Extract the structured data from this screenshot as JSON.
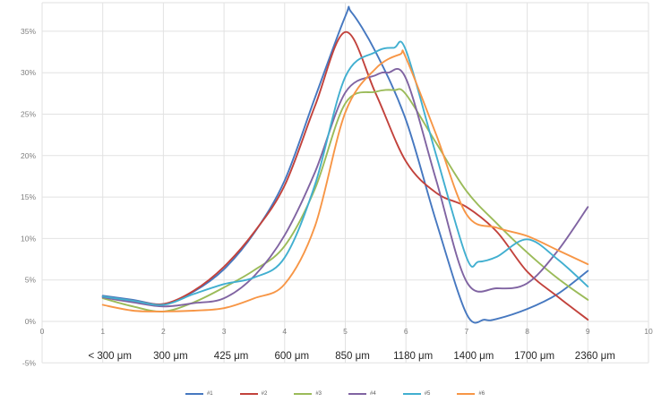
{
  "chart_data": {
    "type": "line",
    "title": "",
    "xlabel": "",
    "ylabel": "",
    "grid": true,
    "legend_position": "bottom",
    "x_axis": {
      "min": 0,
      "max": 10,
      "ticks": [
        "0",
        "1",
        "2",
        "3",
        "4",
        "5",
        "6",
        "7",
        "8",
        "9",
        "10"
      ]
    },
    "y_axis": {
      "min": -5,
      "max": 38.5,
      "step": 5,
      "ticks": [
        "-5%",
        "0%",
        "5%",
        "10%",
        "15%",
        "20%",
        "25%",
        "30%",
        "35%"
      ],
      "tick_values": [
        -5,
        0,
        5,
        10,
        15,
        20,
        25,
        30,
        35
      ]
    },
    "category_labels": [
      {
        "x": 1,
        "label": "< 300 μm"
      },
      {
        "x": 2,
        "label": "300 μm"
      },
      {
        "x": 3,
        "label": "425 μm"
      },
      {
        "x": 4,
        "label": "600 μm"
      },
      {
        "x": 5,
        "label": "850 μm"
      },
      {
        "x": 6,
        "label": "1180 μm"
      },
      {
        "x": 7,
        "label": "1400 μm"
      },
      {
        "x": 8,
        "label": "1700 μm"
      },
      {
        "x": 9,
        "label": "2360 μm"
      }
    ],
    "series": [
      {
        "name": "#1",
        "color": "#4678C0",
        "points": [
          [
            1,
            3.1
          ],
          [
            1.5,
            2.6
          ],
          [
            2,
            2.1
          ],
          [
            2.5,
            3.6
          ],
          [
            3,
            6.3
          ],
          [
            3.5,
            10.7
          ],
          [
            4,
            17.0
          ],
          [
            4.5,
            27.0
          ],
          [
            5,
            36.8
          ],
          [
            5.1,
            37.3
          ],
          [
            5.5,
            32.5
          ],
          [
            6,
            24.3
          ],
          [
            6.5,
            12.0
          ],
          [
            7,
            0.9
          ],
          [
            7.3,
            0.2
          ],
          [
            7.5,
            0.3
          ],
          [
            8,
            1.5
          ],
          [
            8.5,
            3.3
          ],
          [
            9,
            6.1
          ]
        ]
      },
      {
        "name": "#2",
        "color": "#C2423C",
        "points": [
          [
            1,
            3.0
          ],
          [
            1.5,
            2.5
          ],
          [
            2,
            2.1
          ],
          [
            2.5,
            3.7
          ],
          [
            3,
            6.6
          ],
          [
            3.5,
            10.8
          ],
          [
            4,
            16.4
          ],
          [
            4.5,
            26.0
          ],
          [
            5,
            34.9
          ],
          [
            5.5,
            27.5
          ],
          [
            6,
            19.3
          ],
          [
            6.5,
            15.5
          ],
          [
            7,
            13.8
          ],
          [
            7.5,
            10.8
          ],
          [
            8,
            6.0
          ],
          [
            8.5,
            3.0
          ],
          [
            9,
            0.2
          ]
        ]
      },
      {
        "name": "#3",
        "color": "#9BBB59",
        "points": [
          [
            1,
            2.8
          ],
          [
            1.5,
            1.8
          ],
          [
            2,
            1.2
          ],
          [
            2.5,
            2.3
          ],
          [
            3,
            4.1
          ],
          [
            3.5,
            6.2
          ],
          [
            4,
            9.1
          ],
          [
            4.5,
            16.0
          ],
          [
            5,
            26.3
          ],
          [
            5.5,
            27.7
          ],
          [
            5.8,
            27.9
          ],
          [
            6,
            27.4
          ],
          [
            6.5,
            21.5
          ],
          [
            7,
            15.7
          ],
          [
            7.5,
            11.8
          ],
          [
            8,
            8.3
          ],
          [
            8.5,
            5.2
          ],
          [
            9,
            2.6
          ]
        ]
      },
      {
        "name": "#4",
        "color": "#8064A2",
        "points": [
          [
            1,
            2.9
          ],
          [
            1.5,
            2.3
          ],
          [
            2,
            1.8
          ],
          [
            2.5,
            2.2
          ],
          [
            3,
            2.8
          ],
          [
            3.5,
            5.5
          ],
          [
            4,
            10.4
          ],
          [
            4.5,
            18.0
          ],
          [
            5,
            27.6
          ],
          [
            5.5,
            29.7
          ],
          [
            5.7,
            30.0
          ],
          [
            6,
            29.3
          ],
          [
            6.5,
            17.0
          ],
          [
            7,
            4.8
          ],
          [
            7.5,
            4.0
          ],
          [
            8,
            4.6
          ],
          [
            8.5,
            8.5
          ],
          [
            9,
            13.8
          ]
        ]
      },
      {
        "name": "#5",
        "color": "#41AFD0",
        "points": [
          [
            1,
            3.0
          ],
          [
            1.5,
            2.5
          ],
          [
            2,
            2.0
          ],
          [
            2.5,
            3.3
          ],
          [
            3,
            4.5
          ],
          [
            3.5,
            5.3
          ],
          [
            4,
            7.7
          ],
          [
            4.5,
            16.5
          ],
          [
            5,
            29.5
          ],
          [
            5.5,
            32.5
          ],
          [
            5.8,
            33.0
          ],
          [
            6,
            32.7
          ],
          [
            6.5,
            20.0
          ],
          [
            7,
            7.7
          ],
          [
            7.2,
            7.2
          ],
          [
            7.5,
            7.8
          ],
          [
            8,
            9.9
          ],
          [
            8.5,
            7.5
          ],
          [
            9,
            4.2
          ]
        ]
      },
      {
        "name": "#6",
        "color": "#F79646",
        "points": [
          [
            1,
            2.0
          ],
          [
            1.5,
            1.3
          ],
          [
            2,
            1.2
          ],
          [
            2.5,
            1.3
          ],
          [
            3,
            1.6
          ],
          [
            3.5,
            2.8
          ],
          [
            4,
            4.5
          ],
          [
            4.5,
            11.5
          ],
          [
            5,
            25.2
          ],
          [
            5.5,
            30.5
          ],
          [
            5.9,
            32.2
          ],
          [
            6,
            31.8
          ],
          [
            6.5,
            22.5
          ],
          [
            7,
            12.9
          ],
          [
            7.5,
            11.3
          ],
          [
            8,
            10.3
          ],
          [
            8.5,
            8.6
          ],
          [
            9,
            6.9
          ]
        ]
      }
    ],
    "style": {
      "grid_color": "#e2e2e2",
      "axis_tick_color": "#7f7f7f",
      "category_label_color": "#262626",
      "background": "#ffffff",
      "line_width": 1.9
    }
  }
}
